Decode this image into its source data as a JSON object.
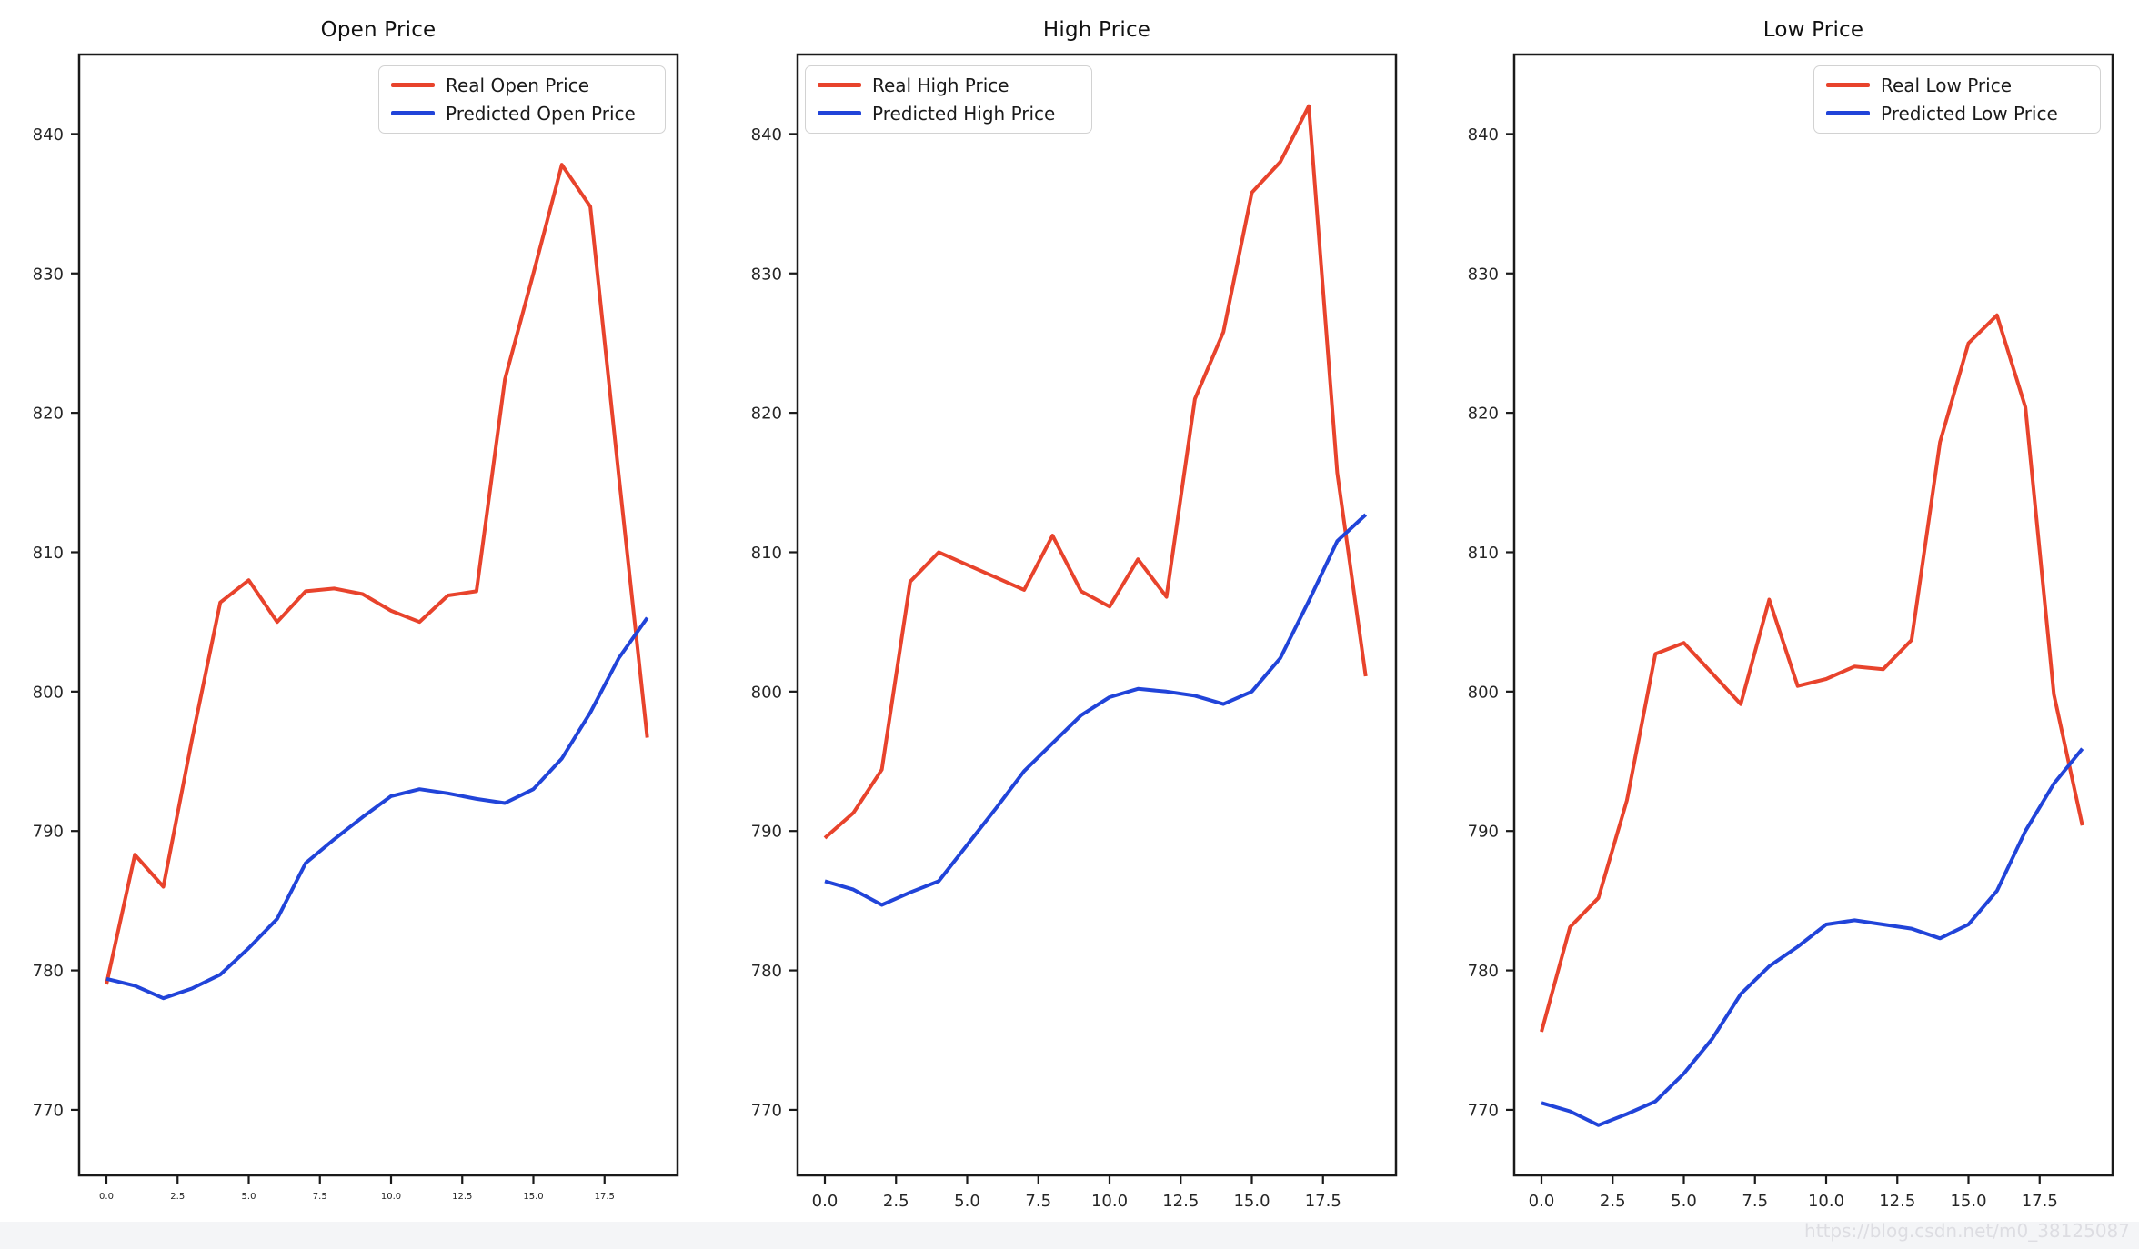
{
  "figure": {
    "background": "#ffffff",
    "watermark": "https://blog.csdn.net/m0_38125087",
    "axis_color": "#1a1a1a",
    "tick_label_color": "#262626"
  },
  "chart_data": [
    {
      "type": "line",
      "title": "Open Price",
      "x": [
        0,
        1,
        2,
        3,
        4,
        5,
        6,
        7,
        8,
        9,
        10,
        11,
        12,
        13,
        14,
        15,
        16,
        17,
        18,
        19
      ],
      "series": [
        {
          "name": "Real Open Price",
          "color": "#e8432c",
          "values": [
            779.0,
            788.3,
            786.0,
            796.5,
            806.4,
            808.0,
            805.0,
            807.2,
            807.4,
            807.0,
            805.8,
            805.0,
            806.9,
            807.2,
            822.4,
            830.0,
            837.8,
            834.8,
            815.5,
            796.7
          ]
        },
        {
          "name": "Predicted Open Price",
          "color": "#2144d9",
          "values": [
            779.4,
            778.9,
            778.0,
            778.7,
            779.7,
            781.6,
            783.7,
            787.7,
            789.4,
            791.0,
            792.5,
            793.0,
            792.7,
            792.3,
            792.0,
            793.0,
            795.2,
            798.5,
            802.4,
            805.3
          ]
        }
      ],
      "xlabel": "",
      "ylabel": "",
      "xticks": {
        "values": [
          0,
          2.5,
          5,
          7.5,
          10,
          12.5,
          15,
          17.5
        ],
        "labels": [
          "0.0",
          "2.5",
          "5.0",
          "7.5",
          "10.0",
          "12.5",
          "15.0",
          "17.5"
        ]
      },
      "yticks": {
        "values": [
          840,
          830,
          820,
          810,
          800,
          790,
          780,
          770
        ],
        "labels": [
          "840",
          "830",
          "820",
          "810",
          "800",
          "790",
          "780",
          "770"
        ]
      },
      "xlim": [
        -0.96,
        20.12
      ],
      "ylim": [
        765.3,
        845.7
      ],
      "grid": false,
      "legend": {
        "loc": "upper right",
        "entries": [
          "Real Open Price",
          "Predicted Open Price"
        ]
      },
      "xtick_fontsize": 10
    },
    {
      "type": "line",
      "title": "High Price",
      "x": [
        0,
        1,
        2,
        3,
        4,
        5,
        6,
        7,
        8,
        9,
        10,
        11,
        12,
        13,
        14,
        15,
        16,
        17,
        18,
        19
      ],
      "series": [
        {
          "name": "Real High Price",
          "color": "#e8432c",
          "values": [
            789.5,
            791.3,
            794.4,
            807.9,
            810.0,
            809.1,
            808.2,
            807.3,
            811.2,
            807.2,
            806.1,
            809.5,
            806.8,
            821.0,
            825.8,
            835.8,
            838.0,
            842.0,
            815.7,
            801.1
          ]
        },
        {
          "name": "Predicted High Price",
          "color": "#2144d9",
          "values": [
            786.4,
            785.8,
            784.7,
            785.6,
            786.4,
            789.0,
            791.6,
            794.3,
            796.3,
            798.3,
            799.6,
            800.2,
            800.0,
            799.7,
            799.1,
            800.0,
            802.4,
            806.5,
            810.8,
            812.7
          ]
        }
      ],
      "xlabel": "",
      "ylabel": "",
      "xticks": {
        "values": [
          0,
          2.5,
          5,
          7.5,
          10,
          12.5,
          15,
          17.5
        ],
        "labels": [
          "0.0",
          "2.5",
          "5.0",
          "7.5",
          "10.0",
          "12.5",
          "15.0",
          "17.5"
        ]
      },
      "yticks": {
        "values": [
          840,
          830,
          820,
          810,
          800,
          790,
          780,
          770
        ],
        "labels": [
          "840",
          "830",
          "820",
          "810",
          "800",
          "790",
          "780",
          "770"
        ]
      },
      "xlim": [
        -0.96,
        20.12
      ],
      "ylim": [
        765.3,
        845.7
      ],
      "grid": false,
      "legend": {
        "loc": "upper left",
        "entries": [
          "Real High Price",
          "Predicted High Price"
        ]
      },
      "xtick_fontsize": 18
    },
    {
      "type": "line",
      "title": "Low Price",
      "x": [
        0,
        1,
        2,
        3,
        4,
        5,
        6,
        7,
        8,
        9,
        10,
        11,
        12,
        13,
        14,
        15,
        16,
        17,
        18,
        19
      ],
      "series": [
        {
          "name": "Real Low Price",
          "color": "#e8432c",
          "values": [
            775.6,
            783.1,
            785.2,
            792.2,
            802.7,
            803.5,
            801.3,
            799.1,
            806.6,
            800.4,
            800.9,
            801.8,
            801.6,
            803.7,
            817.9,
            825.0,
            827.0,
            820.4,
            799.8,
            790.4
          ]
        },
        {
          "name": "Predicted Low Price",
          "color": "#2144d9",
          "values": [
            770.5,
            769.9,
            768.9,
            769.7,
            770.6,
            772.6,
            775.1,
            778.3,
            780.3,
            781.7,
            783.3,
            783.6,
            783.3,
            783.0,
            782.3,
            783.3,
            785.7,
            790.0,
            793.4,
            795.9
          ]
        }
      ],
      "xlabel": "",
      "ylabel": "",
      "xticks": {
        "values": [
          0,
          2.5,
          5,
          7.5,
          10,
          12.5,
          15,
          17.5
        ],
        "labels": [
          "0.0",
          "2.5",
          "5.0",
          "7.5",
          "10.0",
          "12.5",
          "15.0",
          "17.5"
        ]
      },
      "yticks": {
        "values": [
          840,
          830,
          820,
          810,
          800,
          790,
          780,
          770
        ],
        "labels": [
          "840",
          "830",
          "820",
          "810",
          "800",
          "790",
          "780",
          "770"
        ]
      },
      "xlim": [
        -0.96,
        20.12
      ],
      "ylim": [
        765.3,
        845.7
      ],
      "grid": false,
      "legend": {
        "loc": "upper right",
        "entries": [
          "Real Low Price",
          "Predicted Low Price"
        ]
      },
      "xtick_fontsize": 18
    }
  ]
}
